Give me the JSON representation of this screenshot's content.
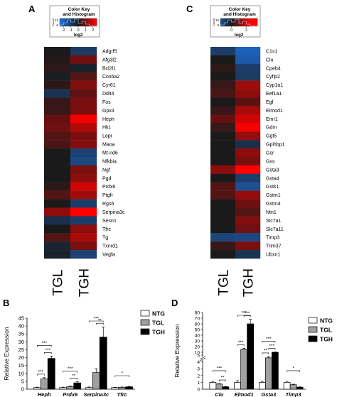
{
  "panels": {
    "A": {
      "letter": "A"
    },
    "B": {
      "letter": "B"
    },
    "C": {
      "letter": "C"
    },
    "D": {
      "letter": "D"
    }
  },
  "colors": {
    "low": "#1e6fd9",
    "mid": "#1a1a1a",
    "high": "#ff0000"
  },
  "chart_data": [
    {
      "type": "heatmap",
      "panel": "A",
      "color_key": {
        "title": "Color Key\nand Histogram",
        "xlabel": "log2",
        "ylabel": "Count",
        "ticks": [
          "-2",
          "-1",
          "0",
          "1",
          "2"
        ],
        "y_ticks": [
          "0",
          "12"
        ],
        "xlim": [
          -2.5,
          2.5
        ]
      },
      "columns": [
        "TGL",
        "TGH"
      ],
      "rows": [
        "Adgrf5",
        "Afg3l2",
        "Bcl2l1",
        "Cox6a2",
        "Cyr61",
        "Ddit4",
        "Fos",
        "Gpx3",
        "Heph",
        "Hk1",
        "Lepr",
        "Maoa",
        "Mt-nd6",
        "Nfkbia",
        "Ngf",
        "Pgd",
        "Prdx6",
        "Ptgfr",
        "Rgs6",
        "Serpina3c",
        "Sesn1",
        "Tfrc",
        "Tg",
        "Txnrd1",
        "Vegfa"
      ],
      "values": [
        [
          0.0,
          -0.9
        ],
        [
          0.1,
          0.9
        ],
        [
          0.2,
          -0.2
        ],
        [
          -0.1,
          0.6
        ],
        [
          0.2,
          1.1
        ],
        [
          -0.7,
          0.7
        ],
        [
          0.3,
          1.0
        ],
        [
          0.3,
          1.0
        ],
        [
          0.8,
          2.3
        ],
        [
          0.9,
          1.6
        ],
        [
          0.6,
          1.0
        ],
        [
          0.5,
          1.1
        ],
        [
          0.0,
          -1.1
        ],
        [
          0.0,
          -1.3
        ],
        [
          0.0,
          1.0
        ],
        [
          0.0,
          1.2
        ],
        [
          0.2,
          1.9
        ],
        [
          0.6,
          1.4
        ],
        [
          0.0,
          -1.0
        ],
        [
          1.2,
          2.5
        ],
        [
          -0.6,
          -1.0
        ],
        [
          0.0,
          1.2
        ],
        [
          0.6,
          1.5
        ],
        [
          -0.3,
          1.0
        ],
        [
          -0.2,
          -1.1
        ]
      ]
    },
    {
      "type": "heatmap",
      "panel": "C",
      "color_key": {
        "title": "Color Key\nand Histogram",
        "xlabel": "log2",
        "ylabel": "Count",
        "ticks": [
          "0",
          "2"
        ],
        "y_ticks": [
          "0",
          "15"
        ],
        "xlim": [
          -1.5,
          3.5
        ]
      },
      "columns": [
        "TGL",
        "TGH"
      ],
      "rows": [
        "C1s1",
        "Clu",
        "Cpeb4",
        "Cyfip2",
        "Cyp1a1",
        "Eef1a1",
        "Egf",
        "Elmod1",
        "Emr1",
        "Gdm",
        "Ggt5",
        "Gpihbp1",
        "Gsr",
        "Gss",
        "Gsta3",
        "Gsta4",
        "Gstk1",
        "Gstm1",
        "Gstm4",
        "Ntn1",
        "Slc7a1",
        "Slc7a11",
        "Timp3",
        "Trim37",
        "Ubxn1"
      ],
      "values": [
        [
          -1.0,
          -2.0
        ],
        [
          0.0,
          -1.8
        ],
        [
          0.2,
          -1.0
        ],
        [
          0.0,
          -0.9
        ],
        [
          0.3,
          1.4
        ],
        [
          0.5,
          1.2
        ],
        [
          0.0,
          0.7
        ],
        [
          0.3,
          1.5
        ],
        [
          0.8,
          1.9
        ],
        [
          0.3,
          2.3
        ],
        [
          0.0,
          1.3
        ],
        [
          0.0,
          -0.6
        ],
        [
          0.0,
          1.2
        ],
        [
          0.0,
          1.0
        ],
        [
          1.2,
          2.6
        ],
        [
          0.0,
          -1.0
        ],
        [
          0.6,
          -1.5
        ],
        [
          0.6,
          1.3
        ],
        [
          0.0,
          0.9
        ],
        [
          0.0,
          0.6
        ],
        [
          0.0,
          1.1
        ],
        [
          0.0,
          0.9
        ],
        [
          -1.2,
          -1.3
        ],
        [
          0.3,
          1.0
        ],
        [
          0.0,
          -0.7
        ]
      ]
    },
    {
      "type": "bar",
      "panel": "B",
      "ylabel": "Relative Expression",
      "ylim": [
        0,
        45
      ],
      "yticks": [
        0,
        5,
        10,
        15,
        20,
        25,
        30,
        35,
        40,
        45
      ],
      "categories": [
        "Heph",
        "Prdx6",
        "Serpina3c",
        "Tfrc"
      ],
      "series": [
        {
          "name": "NTG",
          "values": [
            1.0,
            1.0,
            1.0,
            1.0
          ],
          "errors": [
            0.3,
            0.3,
            0.4,
            0.2
          ],
          "color": "#ffffff"
        },
        {
          "name": "TGL",
          "values": [
            6.5,
            1.6,
            10.5,
            1.2
          ],
          "errors": [
            0.8,
            0.4,
            2.5,
            0.2
          ],
          "color": "#a0a0a0"
        },
        {
          "name": "TGH",
          "values": [
            19.5,
            4.0,
            33.0,
            1.5
          ],
          "errors": [
            1.5,
            0.7,
            6.5,
            0.3
          ],
          "color": "#000000"
        }
      ],
      "significance": [
        {
          "category": "Heph",
          "pair": [
            "NTG",
            "TGL"
          ],
          "label": "***"
        },
        {
          "category": "Heph",
          "pair": [
            "TGL",
            "TGH"
          ],
          "label": "***"
        },
        {
          "category": "Heph",
          "pair": [
            "NTG",
            "TGH"
          ],
          "label": "***"
        },
        {
          "category": "Prdx6",
          "pair": [
            "TGL",
            "TGH"
          ],
          "label": "**"
        },
        {
          "category": "Prdx6",
          "pair": [
            "NTG",
            "TGH"
          ],
          "label": "***"
        },
        {
          "category": "Serpina3c",
          "pair": [
            "TGL",
            "TGH"
          ],
          "label": "**"
        },
        {
          "category": "Serpina3c",
          "pair": [
            "NTG",
            "TGH"
          ],
          "label": "***"
        },
        {
          "category": "Tfrc",
          "pair": [
            "NTG",
            "TGH"
          ],
          "label": "*"
        }
      ],
      "legend_position": "top-right"
    },
    {
      "type": "bar",
      "panel": "D",
      "ylabel": "Relative Expression",
      "scale": "broken",
      "yticks": [
        0,
        1,
        2,
        3,
        4,
        5,
        10,
        20,
        30,
        40,
        50,
        60,
        70,
        80
      ],
      "categories": [
        "Clu",
        "Elmod1",
        "Gsta3",
        "Timp3"
      ],
      "series": [
        {
          "name": "NTG",
          "values": [
            1.0,
            1.0,
            1.0,
            1.0
          ],
          "errors": [
            0.15,
            0.25,
            0.15,
            0.15
          ],
          "color": "#ffffff"
        },
        {
          "name": "TGL",
          "values": [
            0.75,
            15.0,
            4.6,
            0.65
          ],
          "errors": [
            0.08,
            2.0,
            0.2,
            0.08
          ],
          "color": "#a0a0a0"
        },
        {
          "name": "TGH",
          "values": [
            0.35,
            60.0,
            10.0,
            0.3
          ],
          "errors": [
            0.05,
            8.0,
            0.5,
            0.05
          ],
          "color": "#000000"
        }
      ],
      "significance": [
        {
          "category": "Clu",
          "pair": [
            "TGL",
            "TGH"
          ],
          "label": "**"
        },
        {
          "category": "Clu",
          "pair": [
            "NTG",
            "TGH"
          ],
          "label": "***"
        },
        {
          "category": "Elmod1",
          "pair": [
            "NTG",
            "TGL"
          ],
          "label": "***"
        },
        {
          "category": "Elmod1",
          "pair": [
            "TGL",
            "TGH"
          ],
          "label": "***"
        },
        {
          "category": "Elmod1",
          "pair": [
            "NTG",
            "TGH"
          ],
          "label": "***"
        },
        {
          "category": "Gsta3",
          "pair": [
            "NTG",
            "TGL"
          ],
          "label": "**"
        },
        {
          "category": "Gsta3",
          "pair": [
            "TGL",
            "TGH"
          ],
          "label": "***"
        },
        {
          "category": "Gsta3",
          "pair": [
            "NTG",
            "TGH"
          ],
          "label": "***"
        },
        {
          "category": "Timp3",
          "pair": [
            "NTG",
            "TGH"
          ],
          "label": "*"
        }
      ],
      "legend_position": "top-right"
    }
  ]
}
